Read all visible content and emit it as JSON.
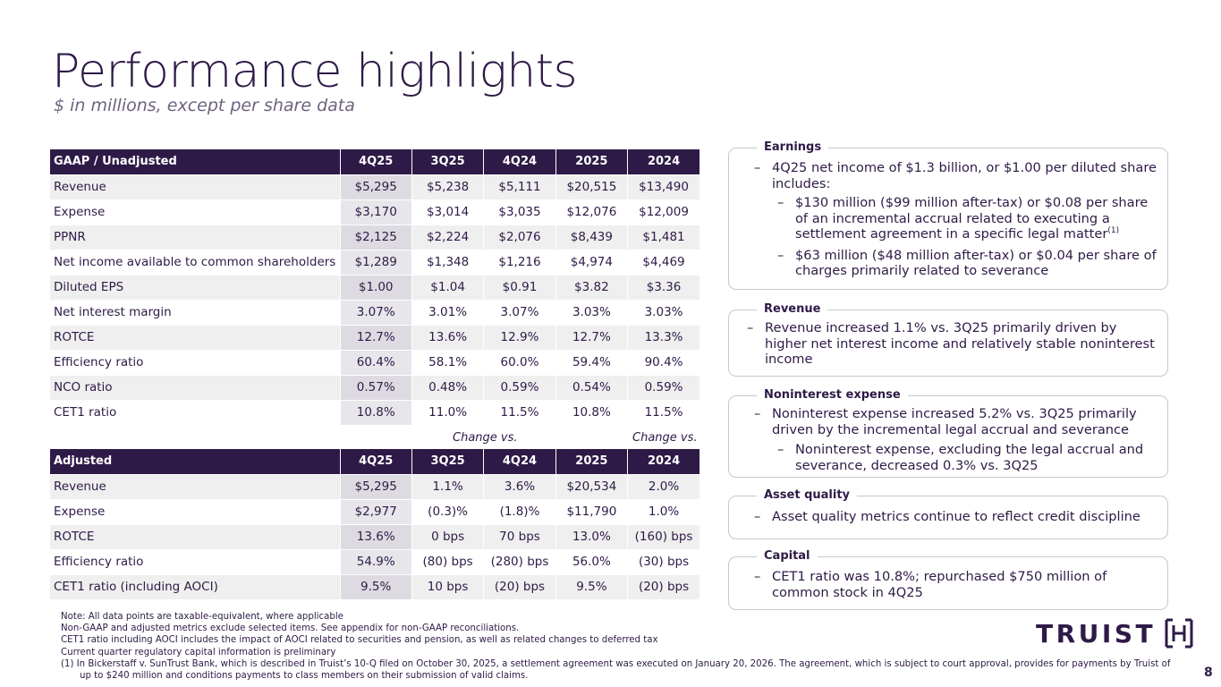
{
  "header": {
    "title": "Performance highlights",
    "subtitle": "$ in millions, except per share data"
  },
  "gaap_table": {
    "headers": [
      "GAAP / Unadjusted",
      "4Q25",
      "3Q25",
      "4Q24",
      "2025",
      "2024"
    ],
    "rows": [
      [
        "Revenue",
        "$5,295",
        "$5,238",
        "$5,111",
        "$20,515",
        "$13,490"
      ],
      [
        "Expense",
        "$3,170",
        "$3,014",
        "$3,035",
        "$12,076",
        "$12,009"
      ],
      [
        "PPNR",
        "$2,125",
        "$2,224",
        "$2,076",
        "$8,439",
        "$1,481"
      ],
      [
        "Net income available to common shareholders",
        "$1,289",
        "$1,348",
        "$1,216",
        "$4,974",
        "$4,469"
      ],
      [
        "Diluted EPS",
        "$1.00",
        "$1.04",
        "$0.91",
        "$3.82",
        "$3.36"
      ],
      [
        "Net interest margin",
        "3.07%",
        "3.01%",
        "3.07%",
        "3.03%",
        "3.03%"
      ],
      [
        "ROTCE",
        "12.7%",
        "13.6%",
        "12.9%",
        "12.7%",
        "13.3%"
      ],
      [
        "Efficiency ratio",
        "60.4%",
        "58.1%",
        "60.0%",
        "59.4%",
        "90.4%"
      ],
      [
        "NCO ratio",
        "0.57%",
        "0.48%",
        "0.59%",
        "0.54%",
        "0.59%"
      ],
      [
        "CET1 ratio",
        "10.8%",
        "11.0%",
        "11.5%",
        "10.8%",
        "11.5%"
      ]
    ]
  },
  "change_vs_label": "Change vs.",
  "adjusted_table": {
    "headers": [
      "Adjusted",
      "4Q25",
      "3Q25",
      "4Q24",
      "2025",
      "2024"
    ],
    "rows": [
      [
        "Revenue",
        "$5,295",
        "1.1%",
        "3.6%",
        "$20,534",
        "2.0%"
      ],
      [
        "Expense",
        "$2,977",
        "(0.3)%",
        "(1.8)%",
        "$11,790",
        "1.0%"
      ],
      [
        "ROTCE",
        "13.6%",
        "0 bps",
        "70 bps",
        "13.0%",
        "(160) bps"
      ],
      [
        "Efficiency ratio",
        "54.9%",
        "(80) bps",
        "(280) bps",
        "56.0%",
        "(30) bps"
      ],
      [
        "CET1 ratio (including AOCI)",
        "9.5%",
        "10 bps",
        "(20) bps",
        "9.5%",
        "(20) bps"
      ]
    ]
  },
  "panels": {
    "earnings": {
      "title": "Earnings",
      "b1": "4Q25 net income of $1.3 billion, or $1.00 per diluted share includes:",
      "b1a": "$130 million ($99 million after-tax) or $0.08 per share of an incremental accrual related to executing a settlement agreement in a specific legal matter",
      "b1a_sup": "(1)",
      "b1b": "$63 million ($48 million after-tax) or $0.04 per share of charges primarily related to severance"
    },
    "revenue": {
      "title": "Revenue",
      "b1": "Revenue increased 1.1% vs. 3Q25 primarily driven by higher net interest income and relatively stable noninterest income"
    },
    "nonint": {
      "title": "Noninterest expense",
      "b1": "Noninterest expense increased 5.2% vs. 3Q25 primarily driven by the incremental legal accrual and severance",
      "b1a": "Noninterest expense, excluding the legal accrual and severance, decreased 0.3% vs. 3Q25"
    },
    "asset": {
      "title": "Asset quality",
      "b1": "Asset quality metrics continue to reflect credit discipline"
    },
    "capital": {
      "title": "Capital",
      "b1": "CET1 ratio was 10.8%; repurchased $750 million of common stock in 4Q25"
    },
    "dash": "–"
  },
  "footnotes": {
    "n1": "Note: All data points are taxable-equivalent, where applicable",
    "n2": "Non-GAAP and adjusted metrics  exclude selected items.  See appendix for non-GAAP reconciliations.",
    "n3": "CET1 ratio including AOCI includes the impact of AOCI related to securities and pension, as well as related changes to deferred tax",
    "n4": "Current quarter regulatory capital information is preliminary",
    "n5": "(1)  In Bickerstaff v. SunTrust Bank, which is described in Truist’s 10-Q filed on October 30, 2025, a settlement agreement was executed on January 20, 2026. The agreement, which is subject to court approval, provides for payments by Truist of up to $240 million and conditions payments to class members on their submission of valid claims."
  },
  "logo": {
    "text": "TRUIST"
  },
  "page_number": "8",
  "colors": {
    "brand": "#2e1a47",
    "row_alt": "#efefef",
    "border": "#c9c6cf"
  }
}
